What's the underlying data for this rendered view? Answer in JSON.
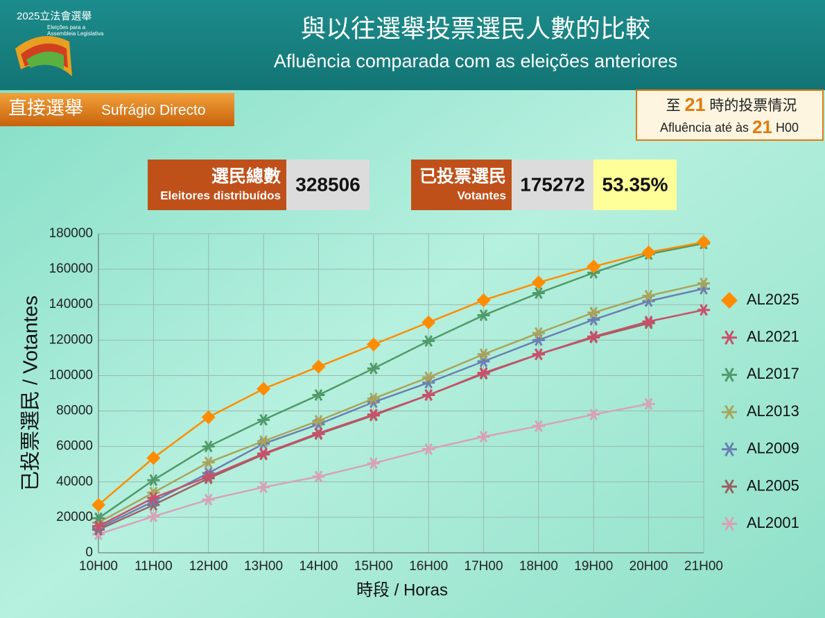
{
  "header": {
    "title_zh": "與以往選舉投票選民人數的比較",
    "title_pt": "Afluência comparada com as eleições anteriores",
    "logo": {
      "year": "2025立法會選舉",
      "line1": "Eleições para a",
      "line2": "Assembleia Legislativa"
    }
  },
  "badge": {
    "zh": "直接選舉",
    "pt": "Sufrágio Directo"
  },
  "status": {
    "zh_pre": "至",
    "zh_hour": "21",
    "zh_post": "時的投票情況",
    "pt_pre": "Afluência até às",
    "pt_hour": "21",
    "pt_post": "H00"
  },
  "stats": {
    "registered": {
      "zh": "選民總數",
      "pt": "Eleitores distribuídos",
      "value": "328506"
    },
    "voted": {
      "zh": "已投票選民",
      "pt": "Votantes",
      "value": "175272",
      "percent": "53.35%"
    }
  },
  "chart_data": {
    "type": "line",
    "x_label": "時段 / Horas",
    "y_label": "已投票選民 / Votantes",
    "categories": [
      "10H00",
      "11H00",
      "12H00",
      "13H00",
      "14H00",
      "15H00",
      "16H00",
      "17H00",
      "18H00",
      "19H00",
      "20H00",
      "21H00"
    ],
    "ylim": [
      0,
      180000
    ],
    "yticks": [
      0,
      20000,
      40000,
      60000,
      80000,
      100000,
      120000,
      140000,
      160000,
      180000
    ],
    "grid": true,
    "legend": "right",
    "series": [
      {
        "name": "AL2025",
        "color": "#ff8c00",
        "marker": "diamond",
        "values": [
          27000,
          53500,
          76500,
          92500,
          105000,
          117500,
          130000,
          142500,
          152500,
          161500,
          169500,
          175272
        ]
      },
      {
        "name": "AL2021",
        "color": "#c8506a",
        "marker": "asterisk",
        "values": [
          15000,
          31000,
          43000,
          56000,
          67500,
          78000,
          89000,
          101500,
          112000,
          122000,
          130500,
          137000
        ]
      },
      {
        "name": "AL2017",
        "color": "#4f9a68",
        "marker": "asterisk",
        "values": [
          19500,
          41000,
          60000,
          75000,
          89000,
          104000,
          119500,
          134000,
          146500,
          158000,
          168500,
          174500
        ]
      },
      {
        "name": "AL2013",
        "color": "#a8a45c",
        "marker": "asterisk",
        "values": [
          17000,
          34000,
          51000,
          63000,
          74500,
          87000,
          99000,
          112000,
          124000,
          135500,
          145000,
          152000
        ]
      },
      {
        "name": "AL2009",
        "color": "#6a7fb2",
        "marker": "asterisk",
        "values": [
          14000,
          29000,
          45000,
          61500,
          72500,
          85000,
          96000,
          108000,
          120000,
          131500,
          142000,
          149000
        ]
      },
      {
        "name": "AL2005",
        "color": "#9a6262",
        "marker": "asterisk",
        "values": [
          13000,
          27000,
          42000,
          55500,
          67000,
          77500,
          89000,
          101000,
          112000,
          121500,
          129500,
          null
        ]
      },
      {
        "name": "AL2001",
        "color": "#d8a2b6",
        "marker": "asterisk",
        "values": [
          10500,
          20500,
          30000,
          37000,
          43000,
          50500,
          58500,
          65500,
          71500,
          78000,
          84000,
          null
        ]
      }
    ]
  }
}
